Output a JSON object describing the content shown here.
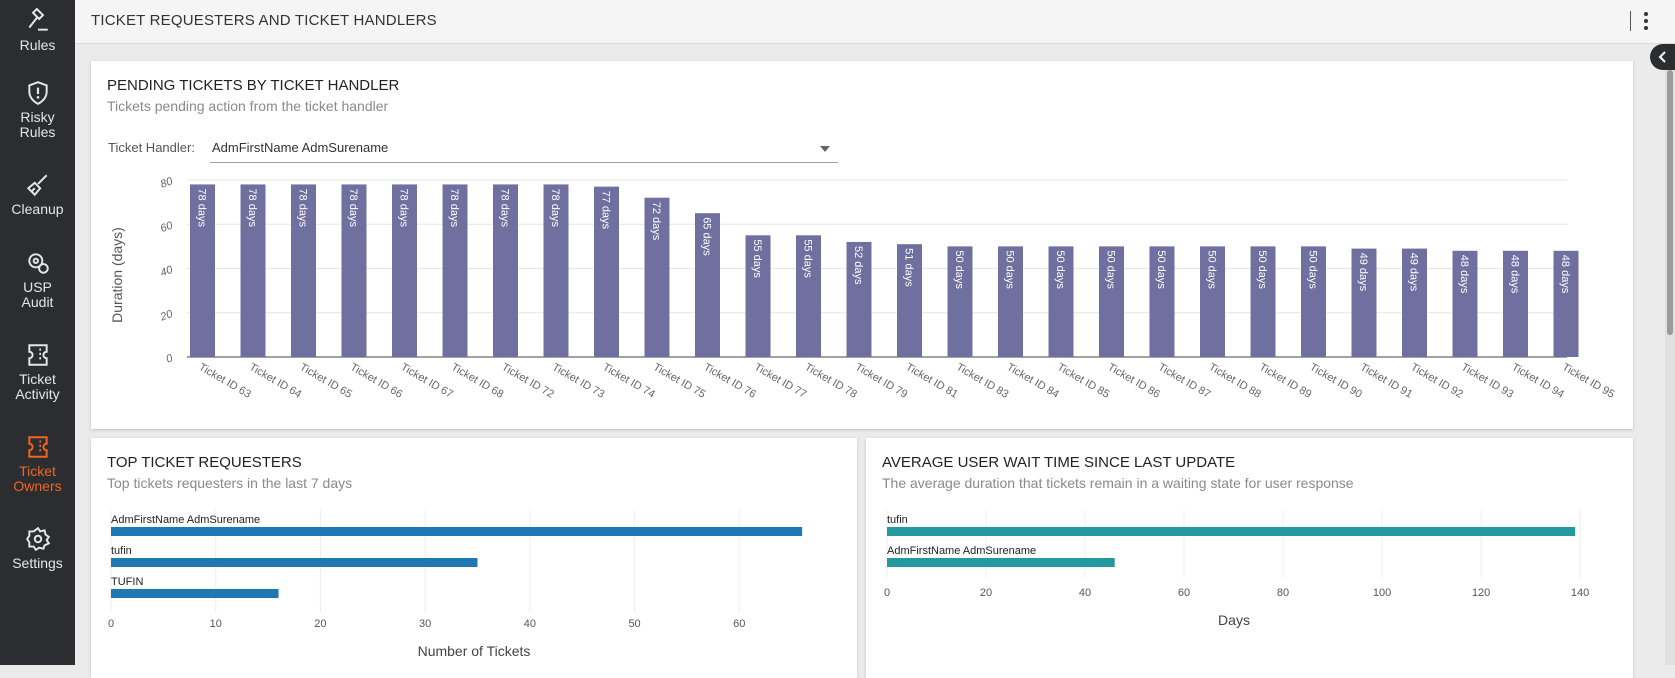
{
  "sidebar": {
    "items": [
      {
        "label": "Rules",
        "icon": "gavel-icon"
      },
      {
        "label": "Risky Rules",
        "icon": "shield-alert-icon"
      },
      {
        "label": "Cleanup",
        "icon": "broom-icon"
      },
      {
        "label": "USP Audit",
        "icon": "audit-gear-icon"
      },
      {
        "label": "Ticket Activity",
        "icon": "ticket-icon"
      },
      {
        "label": "Ticket Owners",
        "icon": "ticket-icon",
        "active": true
      },
      {
        "label": "Settings",
        "icon": "gear-icon"
      }
    ],
    "active_color": "#f26522"
  },
  "header": {
    "title": "TICKET REQUESTERS AND TICKET HANDLERS"
  },
  "pending": {
    "title": "PENDING TICKETS BY TICKET HANDLER",
    "subtitle": "Tickets pending action from the ticket handler",
    "handler_label": "Ticket Handler:",
    "handler_value": "AdmFirstName AdmSurename"
  },
  "requesters": {
    "title": "TOP TICKET REQUESTERS",
    "subtitle": "Top tickets requesters in the last 7 days"
  },
  "wait": {
    "title": "AVERAGE USER WAIT TIME SINCE LAST UPDATE",
    "subtitle": "The average duration that tickets remain in a waiting state for user response"
  },
  "chart_data": [
    {
      "type": "bar",
      "ylabel": "Duration (days)",
      "ylim": [
        0,
        80
      ],
      "yticks": [
        0,
        20,
        40,
        60,
        80
      ],
      "color": "#7070a0",
      "categories": [
        "Ticket ID 63",
        "Ticket ID 64",
        "Ticket ID 65",
        "Ticket ID 66",
        "Ticket ID 67",
        "Ticket ID 68",
        "Ticket ID 72",
        "Ticket ID 73",
        "Ticket ID 74",
        "Ticket ID 75",
        "Ticket ID 76",
        "Ticket ID 77",
        "Ticket ID 78",
        "Ticket ID 79",
        "Ticket ID 81",
        "Ticket ID 83",
        "Ticket ID 84",
        "Ticket ID 85",
        "Ticket ID 86",
        "Ticket ID 87",
        "Ticket ID 88",
        "Ticket ID 89",
        "Ticket ID 90",
        "Ticket ID 91",
        "Ticket ID 92",
        "Ticket ID 93",
        "Ticket ID 94",
        "Ticket ID 95"
      ],
      "values": [
        78,
        78,
        78,
        78,
        78,
        78,
        78,
        78,
        77,
        72,
        65,
        55,
        55,
        52,
        51,
        50,
        50,
        50,
        50,
        50,
        50,
        50,
        50,
        49,
        49,
        48,
        48,
        48
      ],
      "data_labels": [
        "78 days",
        "78 days",
        "78 days",
        "78 days",
        "78 days",
        "78 days",
        "78 days",
        "78 days",
        "77 days",
        "72 days",
        "65 days",
        "55 days",
        "55 days",
        "52 days",
        "51 days",
        "50 days",
        "50 days",
        "50 days",
        "50 days",
        "50 days",
        "50 days",
        "50 days",
        "50 days",
        "49 days",
        "49 days",
        "48 days",
        "48 days",
        "48 days"
      ]
    },
    {
      "type": "bar",
      "orientation": "horizontal",
      "xlabel": "Number of Tickets",
      "xlim": [
        0,
        70
      ],
      "xticks": [
        0,
        10,
        20,
        30,
        40,
        50,
        60
      ],
      "color": "#1f77b4",
      "categories": [
        "AdmFirstName AdmSurename",
        "tufin",
        "TUFIN"
      ],
      "values": [
        66,
        35,
        16
      ]
    },
    {
      "type": "bar",
      "orientation": "horizontal",
      "xlabel": "Days",
      "xlim": [
        0,
        142
      ],
      "xticks": [
        0,
        20,
        40,
        60,
        80,
        100,
        120,
        140
      ],
      "color": "#259a9e",
      "categories": [
        "tufin",
        "AdmFirstName AdmSurename"
      ],
      "values": [
        139,
        46
      ]
    }
  ]
}
